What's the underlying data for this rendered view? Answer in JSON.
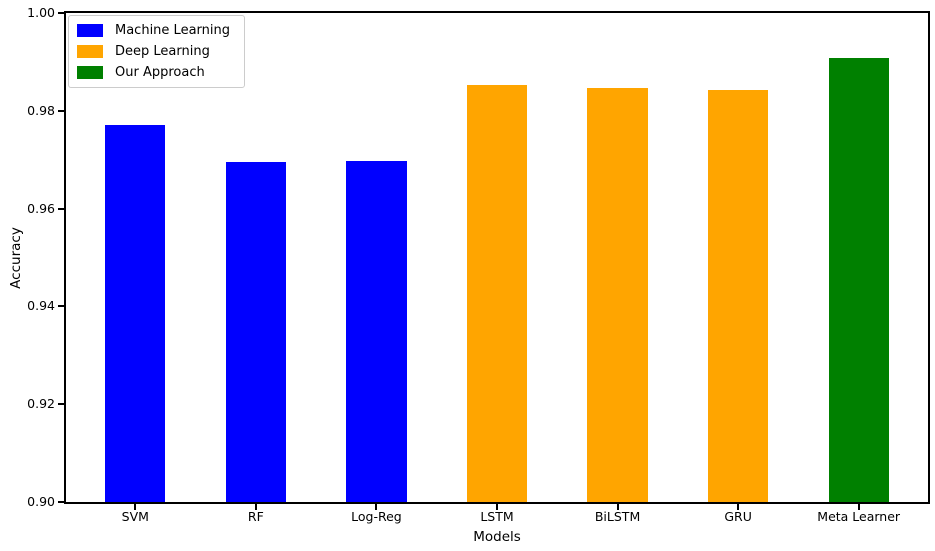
{
  "chart_data": {
    "type": "bar",
    "title": "",
    "xlabel": "Models",
    "ylabel": "Accuracy",
    "categories": [
      "SVM",
      "RF",
      "Log-Reg",
      "LSTM",
      "BiLSTM",
      "GRU",
      "Meta Learner"
    ],
    "values": [
      0.977,
      0.9695,
      0.9697,
      0.9853,
      0.9847,
      0.9843,
      0.9907
    ],
    "bar_colors": [
      "#0000ff",
      "#0000ff",
      "#0000ff",
      "#ffa500",
      "#ffa500",
      "#ffa500",
      "#008000"
    ],
    "group_of_bar": [
      "Machine Learning",
      "Machine Learning",
      "Machine Learning",
      "Deep Learning",
      "Deep Learning",
      "Deep Learning",
      "Our Approach"
    ],
    "ylim": [
      0.9,
      1.0
    ],
    "yticks": [
      0.9,
      0.92,
      0.94,
      0.96,
      0.98,
      1.0
    ],
    "ytick_labels": [
      "0.90",
      "0.92",
      "0.94",
      "0.96",
      "0.98",
      "1.00"
    ],
    "xlim": [
      -0.575,
      6.575
    ],
    "bar_width": 0.5,
    "grid": false,
    "legend": {
      "position": "upper-left",
      "entries": [
        {
          "label": "Machine Learning",
          "color": "#0000ff"
        },
        {
          "label": "Deep Learning",
          "color": "#ffa500"
        },
        {
          "label": "Our Approach",
          "color": "#008000"
        }
      ]
    }
  }
}
